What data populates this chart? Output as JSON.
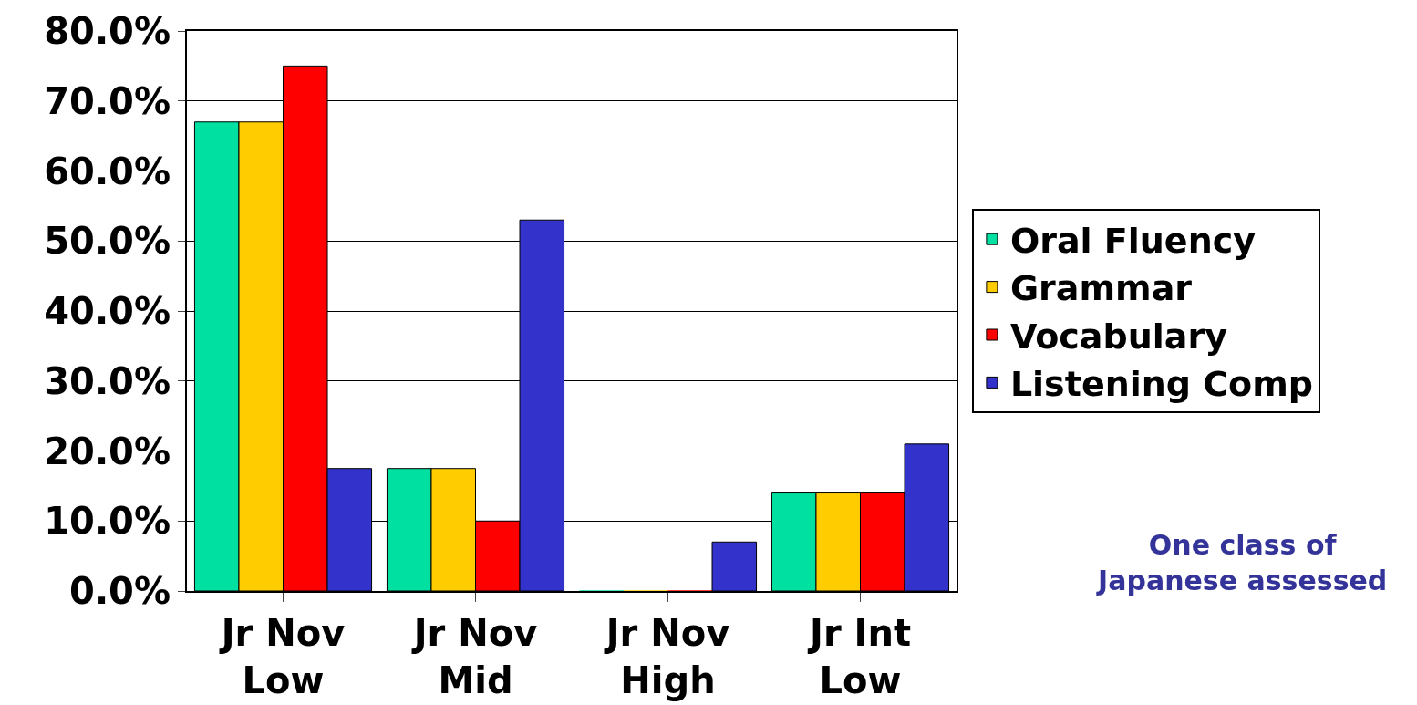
{
  "chart_data": {
    "type": "bar",
    "categories": [
      "Jr Nov Low",
      "Jr Nov Mid",
      "Jr Nov High",
      "Jr Int Low"
    ],
    "series": [
      {
        "name": "Oral Fluency",
        "color": "#00e0a0",
        "values": [
          67,
          17.5,
          0,
          14
        ]
      },
      {
        "name": "Grammar",
        "color": "#ffcc00",
        "values": [
          67,
          17.5,
          0,
          14
        ]
      },
      {
        "name": "Vocabulary",
        "color": "#ff0000",
        "values": [
          75,
          10,
          0,
          14
        ]
      },
      {
        "name": "Listening Comp",
        "color": "#3333cc",
        "values": [
          17.5,
          53,
          7,
          21
        ]
      }
    ],
    "ylim": [
      0,
      80
    ],
    "yticks": [
      {
        "value": 0,
        "label": "0.0%"
      },
      {
        "value": 10,
        "label": "10.0%"
      },
      {
        "value": 20,
        "label": "20.0%"
      },
      {
        "value": 30,
        "label": "30.0%"
      },
      {
        "value": 40,
        "label": "40.0%"
      },
      {
        "value": 50,
        "label": "50.0%"
      },
      {
        "value": 60,
        "label": "60.0%"
      },
      {
        "value": 70,
        "label": "70.0%"
      },
      {
        "value": 80,
        "label": "80.0%"
      }
    ],
    "grid": "y",
    "legend": "right",
    "annotations": [
      "One class of Japanese assessed"
    ]
  }
}
